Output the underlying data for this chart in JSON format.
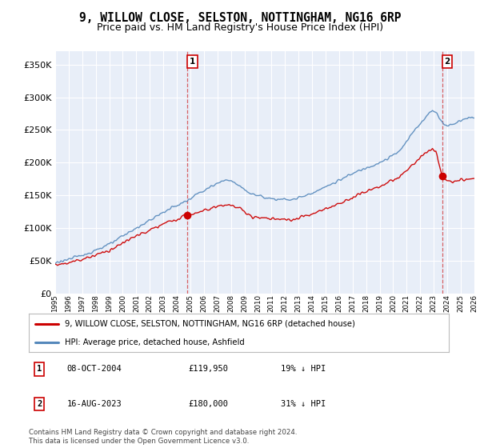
{
  "title": "9, WILLOW CLOSE, SELSTON, NOTTINGHAM, NG16 6RP",
  "subtitle": "Price paid vs. HM Land Registry's House Price Index (HPI)",
  "title_fontsize": 10.5,
  "subtitle_fontsize": 9,
  "background_color": "#ffffff",
  "plot_bg_color": "#e8eef8",
  "grid_color": "#ffffff",
  "ylim": [
    0,
    370000
  ],
  "yticks": [
    0,
    50000,
    100000,
    150000,
    200000,
    250000,
    300000,
    350000
  ],
  "xlim_start": 1995,
  "xlim_end": 2026,
  "transaction1_x": 2004.78,
  "transaction1_y": 119950,
  "transaction2_x": 2023.62,
  "transaction2_y": 180000,
  "vline1_x": 2004.78,
  "vline2_x": 2023.62,
  "legend_label_red": "9, WILLOW CLOSE, SELSTON, NOTTINGHAM, NG16 6RP (detached house)",
  "legend_label_blue": "HPI: Average price, detached house, Ashfield",
  "annotation1_date": "08-OCT-2004",
  "annotation1_price": "£119,950",
  "annotation1_hpi": "19% ↓ HPI",
  "annotation2_date": "16-AUG-2023",
  "annotation2_price": "£180,000",
  "annotation2_hpi": "31% ↓ HPI",
  "footer": "Contains HM Land Registry data © Crown copyright and database right 2024.\nThis data is licensed under the Open Government Licence v3.0.",
  "red_color": "#cc0000",
  "blue_color": "#5588bb"
}
